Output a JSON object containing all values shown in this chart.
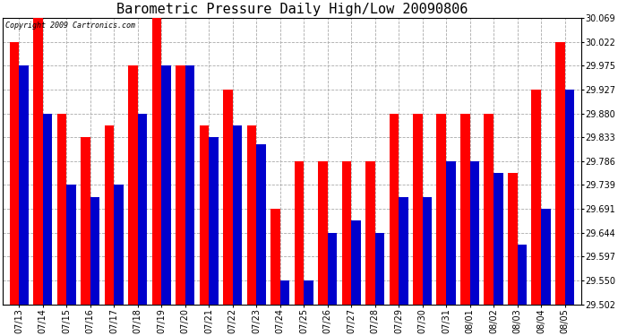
{
  "title": "Barometric Pressure Daily High/Low 20090806",
  "copyright": "Copyright 2009 Cartronics.com",
  "dates": [
    "07/13",
    "07/14",
    "07/15",
    "07/16",
    "07/17",
    "07/18",
    "07/19",
    "07/20",
    "07/21",
    "07/22",
    "07/23",
    "07/24",
    "07/25",
    "07/26",
    "07/27",
    "07/28",
    "07/29",
    "07/30",
    "07/31",
    "08/01",
    "08/02",
    "08/03",
    "08/04",
    "08/05"
  ],
  "highs": [
    30.022,
    30.069,
    29.88,
    29.833,
    29.856,
    29.975,
    30.069,
    29.975,
    29.856,
    29.927,
    29.856,
    29.691,
    29.786,
    29.786,
    29.786,
    29.786,
    29.88,
    29.88,
    29.88,
    29.88,
    29.88,
    29.762,
    29.927,
    30.022
  ],
  "lows": [
    29.975,
    29.88,
    29.739,
    29.715,
    29.739,
    29.88,
    29.975,
    29.975,
    29.833,
    29.856,
    29.82,
    29.55,
    29.55,
    29.644,
    29.668,
    29.644,
    29.715,
    29.715,
    29.786,
    29.786,
    29.762,
    29.62,
    29.691,
    29.927
  ],
  "high_color": "#ff0000",
  "low_color": "#0000cc",
  "bg_color": "#ffffff",
  "grid_color": "#aaaaaa",
  "ylim_min": 29.502,
  "ylim_max": 30.069,
  "yticks": [
    29.502,
    29.55,
    29.597,
    29.644,
    29.691,
    29.739,
    29.786,
    29.833,
    29.88,
    29.927,
    29.975,
    30.022,
    30.069
  ],
  "bar_width": 0.4,
  "title_fontsize": 11,
  "tick_fontsize": 7,
  "figwidth": 6.9,
  "figheight": 3.75,
  "dpi": 100
}
